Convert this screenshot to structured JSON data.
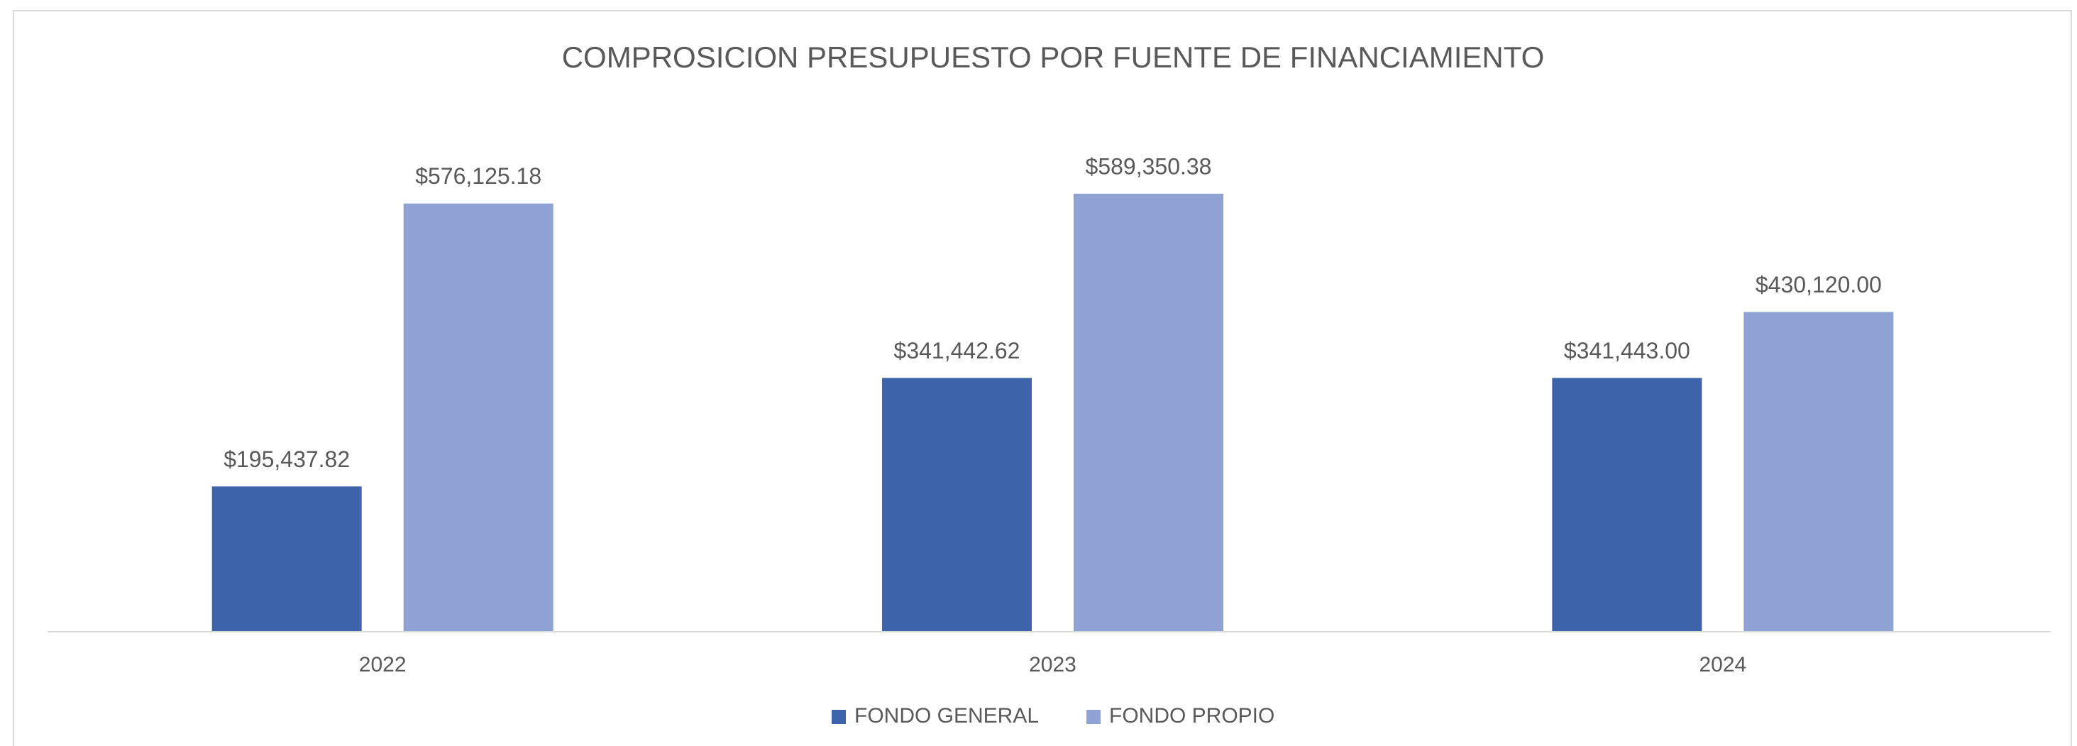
{
  "chart_data": {
    "type": "bar",
    "title": "COMPROSICION PRESUPUESTO POR FUENTE DE FINANCIAMIENTO",
    "categories": [
      "2022",
      "2023",
      "2024"
    ],
    "series": [
      {
        "name": "FONDO GENERAL",
        "color": "#3d64ab",
        "values": [
          195437.82,
          341442.62,
          341443.0
        ],
        "value_labels": [
          "$195,437.82",
          "$341,442.62",
          "$341,443.00"
        ]
      },
      {
        "name": "FONDO PROPIO",
        "color": "#8fa3d4",
        "values": [
          576125.18,
          589350.38,
          430120.0
        ],
        "value_labels": [
          "$576,125.18",
          "$589,350.38",
          "$430,120.00"
        ]
      }
    ],
    "ylim": [
      0,
      700000
    ],
    "legend": "bottom"
  }
}
